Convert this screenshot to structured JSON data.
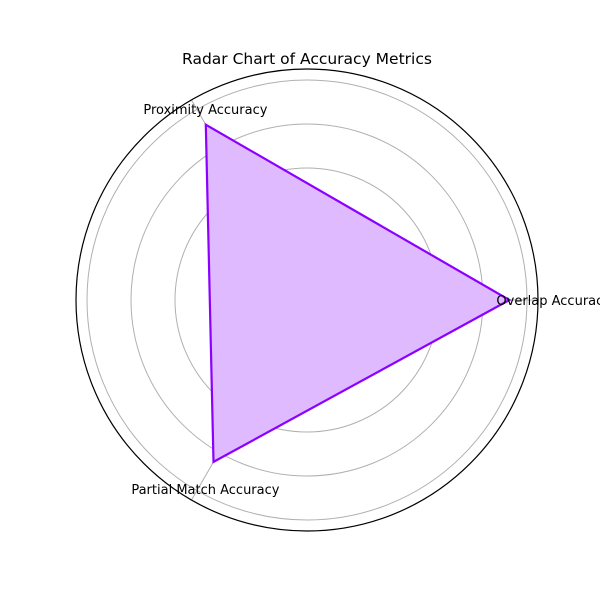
{
  "chart_data": {
    "type": "radar",
    "title": "Radar Chart of Accuracy Metrics",
    "categories": [
      "Overlap Accuracy",
      "Proximity Accuracy",
      "Partial Match Accuracy"
    ],
    "series": [
      {
        "values": [
          0.92,
          0.92,
          0.85
        ],
        "color": "#8b00ff",
        "fill_color": "#dfbaff"
      }
    ],
    "rlim": [
      0,
      1.05
    ],
    "r_ticks": [
      0.2,
      0.4,
      0.6,
      0.8,
      1.0
    ],
    "show_r_tick_labels": false,
    "grid": true,
    "legend": "none"
  }
}
